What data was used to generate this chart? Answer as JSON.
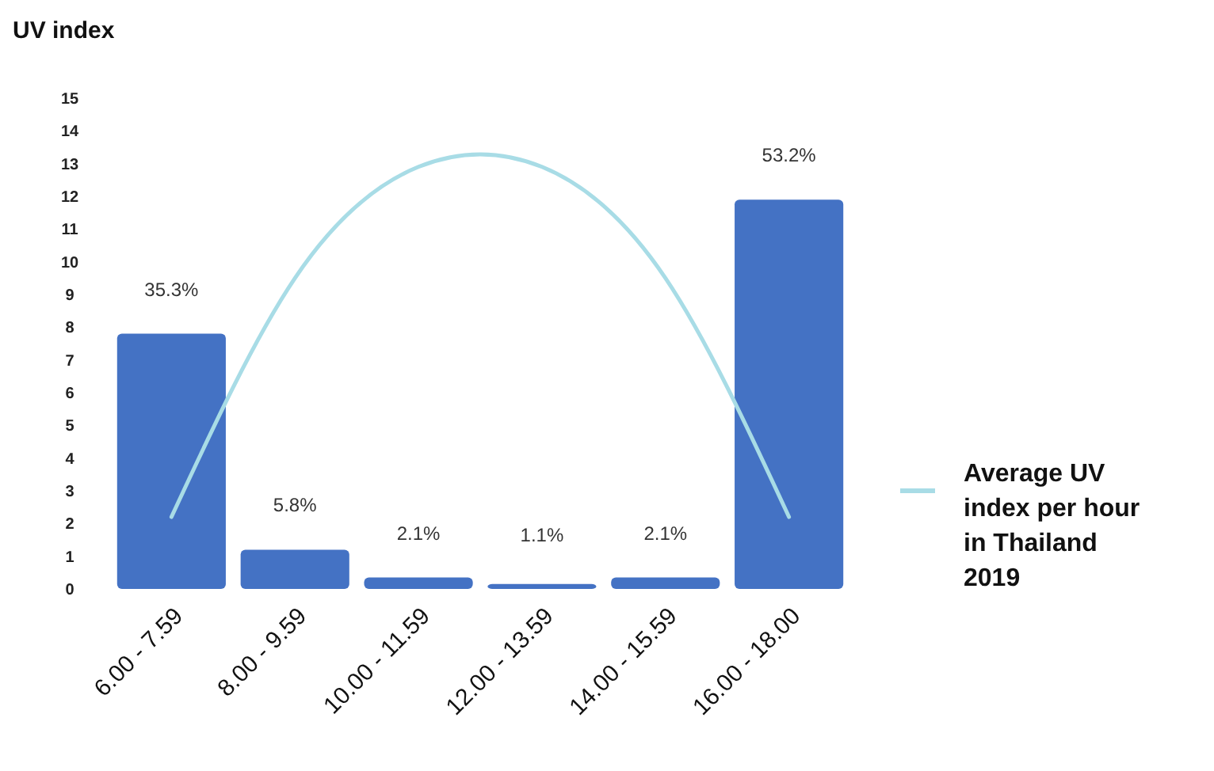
{
  "chart_data": {
    "type": "bar",
    "ylabel": "UV index",
    "categories": [
      "6.00 - 7.59",
      "8.00 - 9.59",
      "10.00 - 11.59",
      "12.00 - 13.59",
      "14.00 - 15.59",
      "16.00 - 18.00"
    ],
    "series": [
      {
        "color": "#4472c4",
        "values": [
          7.8,
          1.2,
          0.35,
          0.15,
          0.35,
          11.9
        ]
      },
      {
        "type": "line",
        "name": "Average UV index per hour in Thailand 2019",
        "color": "#a8dce6",
        "values": [
          2.2,
          9.5,
          12.9,
          12.9,
          9.5,
          2.2
        ]
      }
    ],
    "annotations": [
      {
        "text": "35.3%",
        "x": "6.00 - 7.59",
        "y": 7.8
      },
      {
        "text": "5.8%",
        "x": "8.00 - 9.59",
        "y": 1.2
      },
      {
        "text": "2.1%",
        "x": "10.00 - 11.59",
        "y": 0.35
      },
      {
        "text": "1.1%",
        "x": "12.00 - 13.59",
        "y": 0.15
      },
      {
        "text": "2.1%",
        "x": "14.00 - 15.59",
        "y": 0.35
      },
      {
        "text": "53.2%",
        "x": "16.00 - 18.00",
        "y": 11.9
      }
    ],
    "ylim": [
      0,
      15
    ],
    "yticks": [
      0,
      1,
      2,
      3,
      4,
      5,
      6,
      7,
      8,
      9,
      10,
      11,
      12,
      13,
      14,
      15
    ],
    "legend": "right",
    "marker": "none",
    "line_style": "solid"
  }
}
